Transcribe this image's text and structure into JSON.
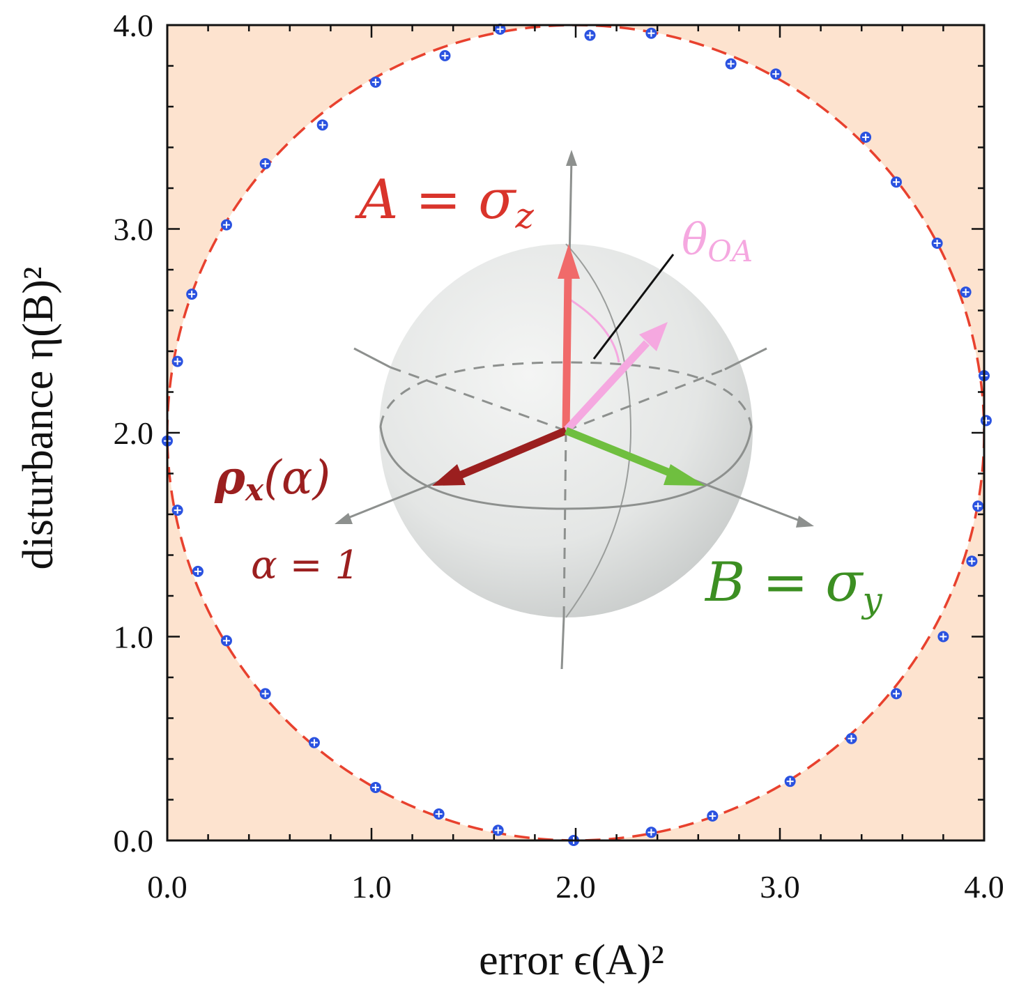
{
  "chart_data": {
    "type": "scatter",
    "xlabel": "error ϵ(A)²",
    "ylabel": "disturbance η(B)²",
    "xlim": [
      0,
      4
    ],
    "ylim": [
      0,
      4
    ],
    "x_ticks": [
      "0.0",
      "1.0",
      "2.0",
      "3.0",
      "4.0"
    ],
    "y_ticks": [
      "0.0",
      "1.0",
      "2.0",
      "3.0",
      "4.0"
    ],
    "grid": false,
    "shaded_region": "outside circle (forbidden region)",
    "colors": {
      "shade": "#fde3cf",
      "bound_line": "#e8412e",
      "points": "#2a52e0",
      "A_arrow": "#f06a6a",
      "rho_arrow": "#9b1f1f",
      "B_arrow": "#6fbf3f",
      "theta_arrow": "#f5a8e0"
    },
    "bound": {
      "shape": "circle",
      "center": [
        2,
        2
      ],
      "radius": 2
    },
    "points": [
      {
        "x": 0.0,
        "y": 1.96
      },
      {
        "x": 0.05,
        "y": 2.35
      },
      {
        "x": 0.05,
        "y": 1.62
      },
      {
        "x": 0.12,
        "y": 2.68
      },
      {
        "x": 0.15,
        "y": 1.32
      },
      {
        "x": 0.29,
        "y": 3.02
      },
      {
        "x": 0.29,
        "y": 0.98
      },
      {
        "x": 0.48,
        "y": 3.32
      },
      {
        "x": 0.48,
        "y": 0.72
      },
      {
        "x": 0.72,
        "y": 0.48
      },
      {
        "x": 0.76,
        "y": 3.51
      },
      {
        "x": 1.02,
        "y": 3.72
      },
      {
        "x": 1.02,
        "y": 0.26
      },
      {
        "x": 1.33,
        "y": 0.13
      },
      {
        "x": 1.36,
        "y": 3.85
      },
      {
        "x": 1.62,
        "y": 0.05
      },
      {
        "x": 1.63,
        "y": 3.98
      },
      {
        "x": 1.99,
        "y": 0.0
      },
      {
        "x": 2.07,
        "y": 3.95
      },
      {
        "x": 2.37,
        "y": 0.04
      },
      {
        "x": 2.37,
        "y": 3.96
      },
      {
        "x": 2.67,
        "y": 0.12
      },
      {
        "x": 2.76,
        "y": 3.81
      },
      {
        "x": 2.98,
        "y": 3.76
      },
      {
        "x": 3.05,
        "y": 0.29
      },
      {
        "x": 3.35,
        "y": 0.5
      },
      {
        "x": 3.42,
        "y": 3.45
      },
      {
        "x": 3.57,
        "y": 3.23
      },
      {
        "x": 3.57,
        "y": 0.72
      },
      {
        "x": 3.77,
        "y": 2.93
      },
      {
        "x": 3.8,
        "y": 1.0
      },
      {
        "x": 3.91,
        "y": 2.69
      },
      {
        "x": 3.94,
        "y": 1.37
      },
      {
        "x": 3.97,
        "y": 1.64
      },
      {
        "x": 4.0,
        "y": 2.28
      },
      {
        "x": 4.01,
        "y": 2.06
      }
    ]
  },
  "inset": {
    "A_label": "A = σ",
    "A_sub": "z",
    "B_label": "B = σ",
    "B_sub": "y",
    "rho_label": "ρ",
    "rho_sub": "x",
    "rho_arg": "(α)",
    "alpha_label": "α = 1",
    "theta_label": "θ",
    "theta_sub": "OA"
  }
}
